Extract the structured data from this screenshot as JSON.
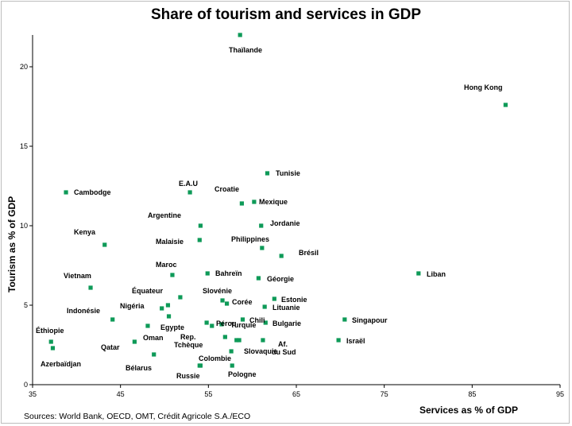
{
  "chart_data": {
    "type": "scatter",
    "title": "Share of tourism and services in GDP",
    "xlabel": "Services as % of GDP",
    "ylabel": "Tourism as % of GDP",
    "xlim": [
      35,
      95
    ],
    "ylim": [
      0,
      22
    ],
    "xticks": [
      35,
      45,
      55,
      65,
      75,
      85,
      95
    ],
    "yticks": [
      0,
      5,
      10,
      15,
      20
    ],
    "marker_color": "#0e9a58",
    "points": [
      {
        "name": "Thaïlande",
        "x": 58.6,
        "y": 22.0
      },
      {
        "name": "Hong Kong",
        "x": 88.8,
        "y": 17.6
      },
      {
        "name": "Tunisie",
        "x": 61.7,
        "y": 13.3
      },
      {
        "name": "E.A.U",
        "x": 52.9,
        "y": 12.1
      },
      {
        "name": "Cambodge",
        "x": 38.8,
        "y": 12.1
      },
      {
        "name": "Croatie",
        "x": 58.8,
        "y": 11.4
      },
      {
        "name": "Mexique",
        "x": 60.2,
        "y": 11.5
      },
      {
        "name": "Argentine",
        "x": 54.1,
        "y": 10.0
      },
      {
        "name": "Jordanie",
        "x": 61.0,
        "y": 10.0
      },
      {
        "name": "Malaisie",
        "x": 54.0,
        "y": 9.1
      },
      {
        "name": "Kenya",
        "x": 43.2,
        "y": 8.8
      },
      {
        "name": "Philippines",
        "x": 61.1,
        "y": 8.6
      },
      {
        "name": "Brésil",
        "x": 63.3,
        "y": 8.1
      },
      {
        "name": "Maroc",
        "x": 50.9,
        "y": 6.9
      },
      {
        "name": "Bahreïn",
        "x": 54.9,
        "y": 7.0
      },
      {
        "name": "Liban",
        "x": 78.9,
        "y": 7.0
      },
      {
        "name": "Géorgie",
        "x": 60.7,
        "y": 6.7
      },
      {
        "name": "Vietnam",
        "x": 41.6,
        "y": 6.1
      },
      {
        "name": "Équateur",
        "x": 51.8,
        "y": 5.5
      },
      {
        "name": "Slovénie",
        "x": 56.6,
        "y": 5.3
      },
      {
        "name": "Corée",
        "x": 57.1,
        "y": 5.1
      },
      {
        "name": "Estonie",
        "x": 62.5,
        "y": 5.4
      },
      {
        "name": "Nigéria",
        "x": 49.7,
        "y": 4.8
      },
      {
        "name": "Nigéria-2",
        "x": 50.4,
        "y": 5.0,
        "nolabel": true
      },
      {
        "name": "Lituanie",
        "x": 61.4,
        "y": 4.9
      },
      {
        "name": "Indonésie",
        "x": 44.1,
        "y": 4.1
      },
      {
        "name": "Egypte",
        "x": 50.5,
        "y": 4.3
      },
      {
        "name": "Oman",
        "x": 48.1,
        "y": 3.7
      },
      {
        "name": "Pérou",
        "x": 54.8,
        "y": 3.9
      },
      {
        "name": "Pérou-2",
        "x": 55.4,
        "y": 3.7,
        "nolabel": true
      },
      {
        "name": "Turquie",
        "x": 56.5,
        "y": 3.8
      },
      {
        "name": "Chili",
        "x": 58.9,
        "y": 4.1
      },
      {
        "name": "Bulgarie",
        "x": 61.5,
        "y": 3.9
      },
      {
        "name": "Singapour",
        "x": 70.5,
        "y": 4.1
      },
      {
        "name": "Éthiopie",
        "x": 37.1,
        "y": 2.7
      },
      {
        "name": "Azerbaïdjan",
        "x": 37.3,
        "y": 2.3
      },
      {
        "name": "Qatar",
        "x": 46.6,
        "y": 2.7
      },
      {
        "name": "Rep. Tchèque",
        "x": 56.9,
        "y": 3.0
      },
      {
        "name": "Rep. Tchèque-2",
        "x": 58.2,
        "y": 2.8,
        "nolabel": true
      },
      {
        "name": "Slovaquie",
        "x": 57.6,
        "y": 2.1
      },
      {
        "name": "Slovaquie-2",
        "x": 58.5,
        "y": 2.8,
        "nolabel": true
      },
      {
        "name": "Af. du Sud",
        "x": 61.2,
        "y": 2.8
      },
      {
        "name": "Israël",
        "x": 69.8,
        "y": 2.8
      },
      {
        "name": "Bélarus",
        "x": 48.8,
        "y": 1.9
      },
      {
        "name": "Colombie",
        "x": 54.1,
        "y": 1.2
      },
      {
        "name": "Pologne",
        "x": 57.7,
        "y": 1.2
      },
      {
        "name": "Russie",
        "x": 54.0,
        "y": 1.2,
        "nolabel": true
      }
    ],
    "labels": [
      "Thaïlande",
      "Hong Kong",
      "Tunisie",
      "E.A.U",
      "Cambodge",
      "Croatie",
      "Mexique",
      "Argentine",
      "Jordanie",
      "Malaisie",
      "Kenya",
      "Philippines",
      "Brésil",
      "Maroc",
      "Bahreïn",
      "Liban",
      "Géorgie",
      "Vietnam",
      "Équateur",
      "Slovénie",
      "Corée",
      "Estonie",
      "Nigéria",
      "Lituanie",
      "Indonésie",
      "Egypte",
      "Oman",
      "Pérou",
      "Turquie",
      "Chili",
      "Bulgarie",
      "Singapour",
      "Éthiopie",
      "Azerbaïdjan",
      "Qatar",
      "Rep.",
      "Tchèque",
      "Slovaquie",
      "Af.",
      "du Sud",
      "Israël",
      "Bélarus",
      "Colombie",
      "Russie",
      "Pologne"
    ]
  },
  "footer": {
    "source": "Sources: World Bank, OECD, OMT, Crédit Agricole S.A./ECO"
  }
}
